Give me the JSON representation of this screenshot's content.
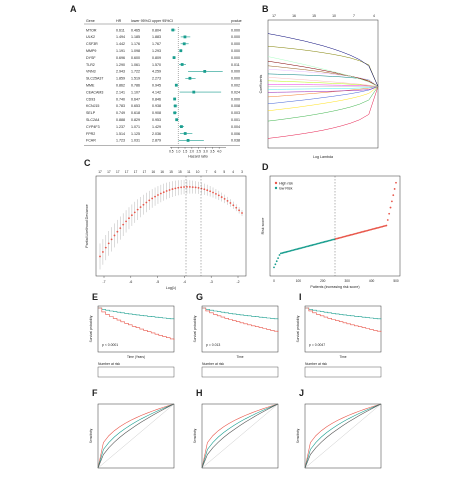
{
  "panel_labels": [
    "A",
    "B",
    "C",
    "D",
    "E",
    "F",
    "G",
    "H",
    "I",
    "J"
  ],
  "forest": {
    "headers": [
      "Gene",
      "HR",
      "lower 95%CI",
      "upper 95%CI",
      "pvalue"
    ],
    "rows": [
      {
        "gene": "MTOR",
        "hr": "0.611",
        "lo": "0.465",
        "hi": "0.804",
        "p": "0.000"
      },
      {
        "gene": "ULK2",
        "hr": "1.494",
        "lo": "1.185",
        "hi": "1.883",
        "p": "0.000"
      },
      {
        "gene": "CSF3R",
        "hr": "1.442",
        "lo": "1.176",
        "hi": "1.767",
        "p": "0.000"
      },
      {
        "gene": "MMP9",
        "hr": "1.191",
        "lo": "1.098",
        "hi": "1.293",
        "p": "0.000"
      },
      {
        "gene": "DYSF",
        "hr": "0.696",
        "lo": "0.600",
        "hi": "0.809",
        "p": "0.000"
      },
      {
        "gene": "TLR2",
        "hr": "1.290",
        "lo": "1.061",
        "hi": "1.570",
        "p": "0.011"
      },
      {
        "gene": "VNN3",
        "hr": "2.943",
        "lo": "1.722",
        "hi": "4.259",
        "p": "0.000"
      },
      {
        "gene": "SLC25A37",
        "hr": "1.859",
        "lo": "1.519",
        "hi": "2.273",
        "p": "0.000"
      },
      {
        "gene": "MME",
        "hr": "0.862",
        "lo": "0.786",
        "hi": "0.945",
        "p": "0.002"
      },
      {
        "gene": "CEACAM3",
        "hr": "2.141",
        "lo": "1.107",
        "hi": "4.142",
        "p": "0.024"
      },
      {
        "gene": "CD93",
        "hr": "0.740",
        "lo": "0.647",
        "hi": "0.846",
        "p": "0.000"
      },
      {
        "gene": "KCNJ15",
        "hr": "0.783",
        "lo": "0.653",
        "hi": "0.938",
        "p": "0.008"
      },
      {
        "gene": "SELP",
        "hr": "0.749",
        "lo": "0.618",
        "hi": "0.908",
        "p": "0.003"
      },
      {
        "gene": "SLC2A4",
        "hr": "0.888",
        "lo": "0.829",
        "hi": "0.953",
        "p": "0.001"
      },
      {
        "gene": "CYP4F3",
        "hr": "1.237",
        "lo": "1.071",
        "hi": "1.429",
        "p": "0.004"
      },
      {
        "gene": "FPR2",
        "hr": "1.514",
        "lo": "1.125",
        "hi": "2.036",
        "p": "0.006"
      },
      {
        "gene": "FCAR",
        "hr": "1.723",
        "lo": "1.031",
        "hi": "2.879",
        "p": "0.038"
      }
    ],
    "xlabel": "Hazard ratio",
    "ticks": [
      "0.5",
      "1.0",
      "1.5",
      "2.0",
      "2.5",
      "3.0",
      "3.5",
      "4.0"
    ]
  },
  "lasso_path": {
    "xlabel": "Log Lambda",
    "ylabel": "Coefficients",
    "top_ticks": [
      "17",
      "16",
      "15",
      "10",
      "7",
      "4"
    ]
  },
  "lasso_cv": {
    "xlabel": "Log(λ)",
    "ylabel": "Partial Likelihood Deviance",
    "top_ticks": [
      "17",
      "17",
      "17",
      "17",
      "17",
      "17",
      "16",
      "16",
      "15",
      "15",
      "11",
      "10",
      "7",
      "6",
      "5",
      "4",
      "3"
    ],
    "x_ticks": [
      "-7",
      "-6",
      "-5",
      "-4",
      "-3",
      "-2"
    ]
  },
  "risk_score": {
    "legend_high": "High risk",
    "legend_low": "low Risk",
    "xlabel": "Patients (increasing risk score)",
    "ylabel": "Risk score",
    "x_ticks": [
      "0",
      "100",
      "200",
      "300",
      "400",
      "500"
    ],
    "colors": {
      "high": "#e8564a",
      "low": "#1a9e8f"
    }
  },
  "km": [
    {
      "panel": "E",
      "p": "p < 0.0001",
      "xlabel": "Time (Years)",
      "ylabel": "Survival probability",
      "risk_title": "Number at risk"
    },
    {
      "panel": "G",
      "p": "p = 0.013",
      "xlabel": "Time",
      "ylabel": "Survival probability",
      "risk_title": "Number at risk"
    },
    {
      "panel": "I",
      "p": "p = 0.0047",
      "xlabel": "Time",
      "ylabel": "Survival probability",
      "risk_title": "Number at risk"
    }
  ],
  "roc": [
    {
      "panel": "F",
      "ylabel": "Sensitivity"
    },
    {
      "panel": "H",
      "ylabel": "Sensitivity"
    },
    {
      "panel": "J",
      "ylabel": "Sensitivity"
    }
  ],
  "colors": {
    "green": "#1a9e8f",
    "red": "#e8564a",
    "grey": "#666666"
  }
}
